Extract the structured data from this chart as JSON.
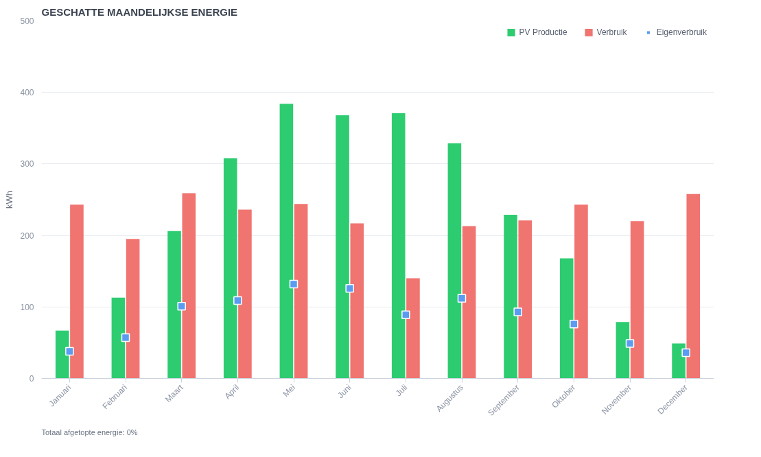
{
  "chart_data": {
    "type": "bar",
    "title": "GESCHATTE MAANDELIJKSE ENERGIE",
    "ylabel": "kWh",
    "categories": [
      "Januari",
      "Februari",
      "Maart",
      "April",
      "Mei",
      "Juni",
      "Juli",
      "Augustus",
      "September",
      "Oktober",
      "November",
      "December"
    ],
    "series": [
      {
        "name": "PV Productie",
        "color": "#2ecc71",
        "values": [
          67,
          113,
          206,
          308,
          384,
          368,
          371,
          329,
          229,
          168,
          79,
          49
        ]
      },
      {
        "name": "Verbruik",
        "color": "#f07470",
        "values": [
          243,
          195,
          259,
          236,
          244,
          217,
          140,
          213,
          221,
          243,
          220,
          258
        ]
      },
      {
        "name": "Eigenverbruik",
        "color": "#5b9bf0",
        "type": "scatter",
        "marker": "square",
        "values": [
          38,
          57,
          101,
          109,
          132,
          126,
          89,
          112,
          93,
          76,
          49,
          36
        ]
      }
    ],
    "ylim": [
      0,
      500
    ],
    "yticks": [
      0,
      100,
      200,
      300,
      400,
      500
    ],
    "grid": "y",
    "legend": "top right",
    "annotations": [
      "Totaal afgetopte energie: 0%"
    ]
  }
}
